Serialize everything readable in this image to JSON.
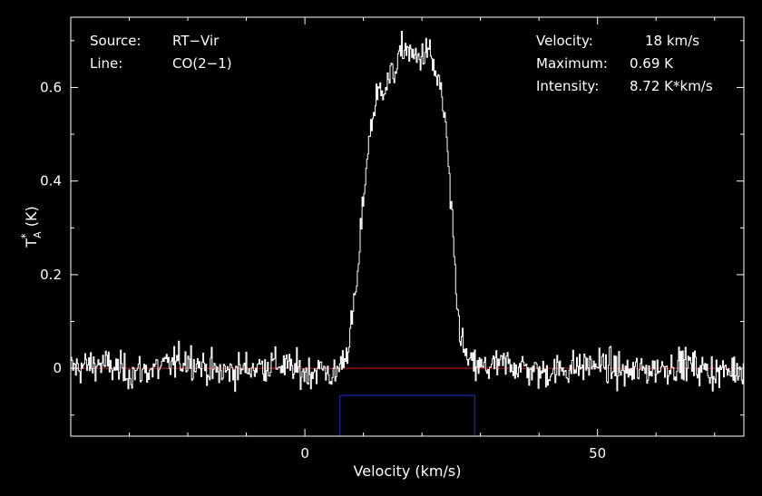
{
  "chart_data": {
    "type": "line",
    "title": "",
    "xlabel": "Velocity (km/s)",
    "ylabel": "T_A^* (K)",
    "xlim": [
      -40,
      75
    ],
    "ylim": [
      -0.145,
      0.75
    ],
    "x_ticks": [
      0,
      50
    ],
    "x_tick_labels": [
      "0",
      "50"
    ],
    "y_ticks": [
      0,
      0.2,
      0.4,
      0.6
    ],
    "y_tick_labels": [
      "0",
      "0.2",
      "0.4",
      "0.6"
    ],
    "grid": false,
    "series": [
      {
        "color": "#ffffff",
        "x": [
          -40,
          -35,
          -30,
          -25,
          -20,
          -15,
          -10,
          -5,
          0,
          3,
          5,
          6,
          7,
          8,
          9,
          10,
          11,
          12,
          13,
          14,
          15,
          16,
          17,
          18,
          19,
          20,
          21,
          22,
          23,
          24,
          25,
          26,
          27,
          28,
          30,
          35,
          40,
          45,
          50,
          55,
          60,
          65,
          70,
          75
        ],
        "values": [
          0.0,
          0.01,
          -0.01,
          0.0,
          0.02,
          -0.01,
          0.0,
          0.01,
          -0.01,
          0.0,
          -0.02,
          0.01,
          0.03,
          0.1,
          0.2,
          0.38,
          0.5,
          0.57,
          0.6,
          0.61,
          0.63,
          0.66,
          0.69,
          0.67,
          0.66,
          0.67,
          0.68,
          0.64,
          0.6,
          0.52,
          0.32,
          0.12,
          0.04,
          0.01,
          0.0,
          0.01,
          -0.01,
          0.0,
          0.01,
          -0.01,
          0.0,
          0.01,
          -0.01,
          0.0
        ],
        "noise_rms": 0.03
      }
    ],
    "baseline": {
      "y": 0,
      "color": "#d11a1a"
    },
    "window": {
      "x": [
        6,
        29
      ],
      "y": [
        -0.145,
        -0.058
      ],
      "color": "#1a2fd6"
    }
  },
  "info_left": {
    "source_label": "Source:",
    "source_value": "RT−Vir",
    "line_label": "Line:",
    "line_value": "CO(2−1)"
  },
  "info_right": {
    "velocity_label": "Velocity:",
    "velocity_value": "18 km/s",
    "maximum_label": "Maximum:",
    "maximum_value": "0.69 K",
    "intensity_label": "Intensity:",
    "intensity_value": "8.72 K*km/s"
  }
}
